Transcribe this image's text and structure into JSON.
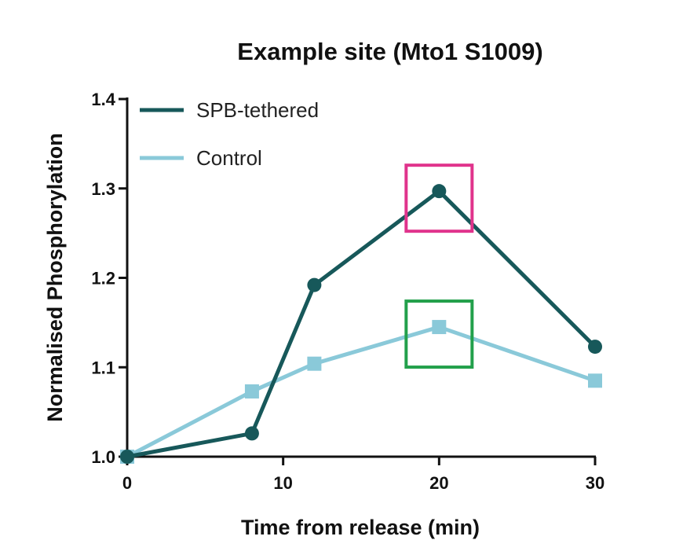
{
  "chart_data": {
    "type": "line",
    "title": "Example site (Mto1 S1009)",
    "xlabel": "Time from release (min)",
    "ylabel": "Normalised Phosphorylation",
    "xlim": [
      0,
      30
    ],
    "ylim": [
      1.0,
      1.4
    ],
    "xticks": [
      "0",
      "10",
      "20",
      "30"
    ],
    "yticks": [
      "1.0",
      "1.1",
      "1.2",
      "1.3",
      "1.4"
    ],
    "legend_position": "top-left",
    "grid": false,
    "series": [
      {
        "name": "SPB-tethered",
        "color": "#17585a",
        "marker": "circle",
        "x": [
          0,
          8,
          12,
          20,
          30
        ],
        "y": [
          1.0,
          1.026,
          1.192,
          1.297,
          1.123
        ]
      },
      {
        "name": "Control",
        "color": "#8ac9d9",
        "marker": "square",
        "x": [
          0,
          8,
          12,
          20,
          30
        ],
        "y": [
          1.0,
          1.073,
          1.104,
          1.145,
          1.085
        ]
      }
    ],
    "annotations": [
      {
        "type": "box",
        "series": "SPB-tethered",
        "x": 20,
        "color": "#e0338c"
      },
      {
        "type": "box",
        "series": "Control",
        "x": 20,
        "color": "#22a04b"
      }
    ]
  }
}
